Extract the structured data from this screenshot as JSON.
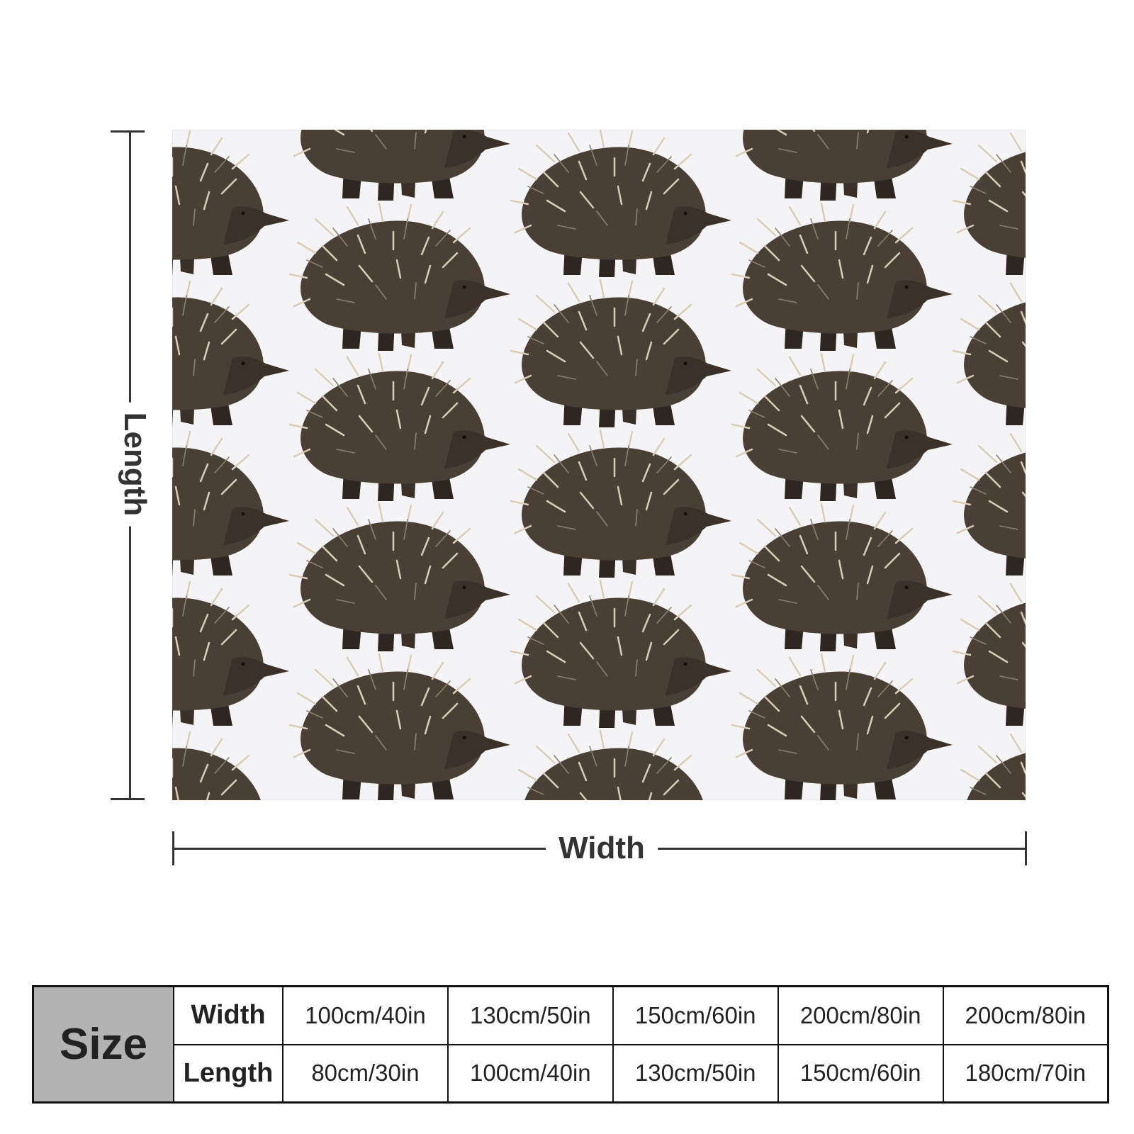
{
  "diagram": {
    "length_label": "Length",
    "width_label": "Width"
  },
  "product_image": {
    "motif_icon": "echidna-icon",
    "background_color": "#f4f4f6"
  },
  "size_table": {
    "header": "Size",
    "width_label": "Width",
    "length_label": "Length",
    "widths": [
      "100cm/40in",
      "130cm/50in",
      "150cm/60in",
      "200cm/80in",
      "200cm/80in"
    ],
    "lengths": [
      "80cm/30in",
      "100cm/40in",
      "130cm/50in",
      "150cm/60in",
      "180cm/70in"
    ]
  }
}
